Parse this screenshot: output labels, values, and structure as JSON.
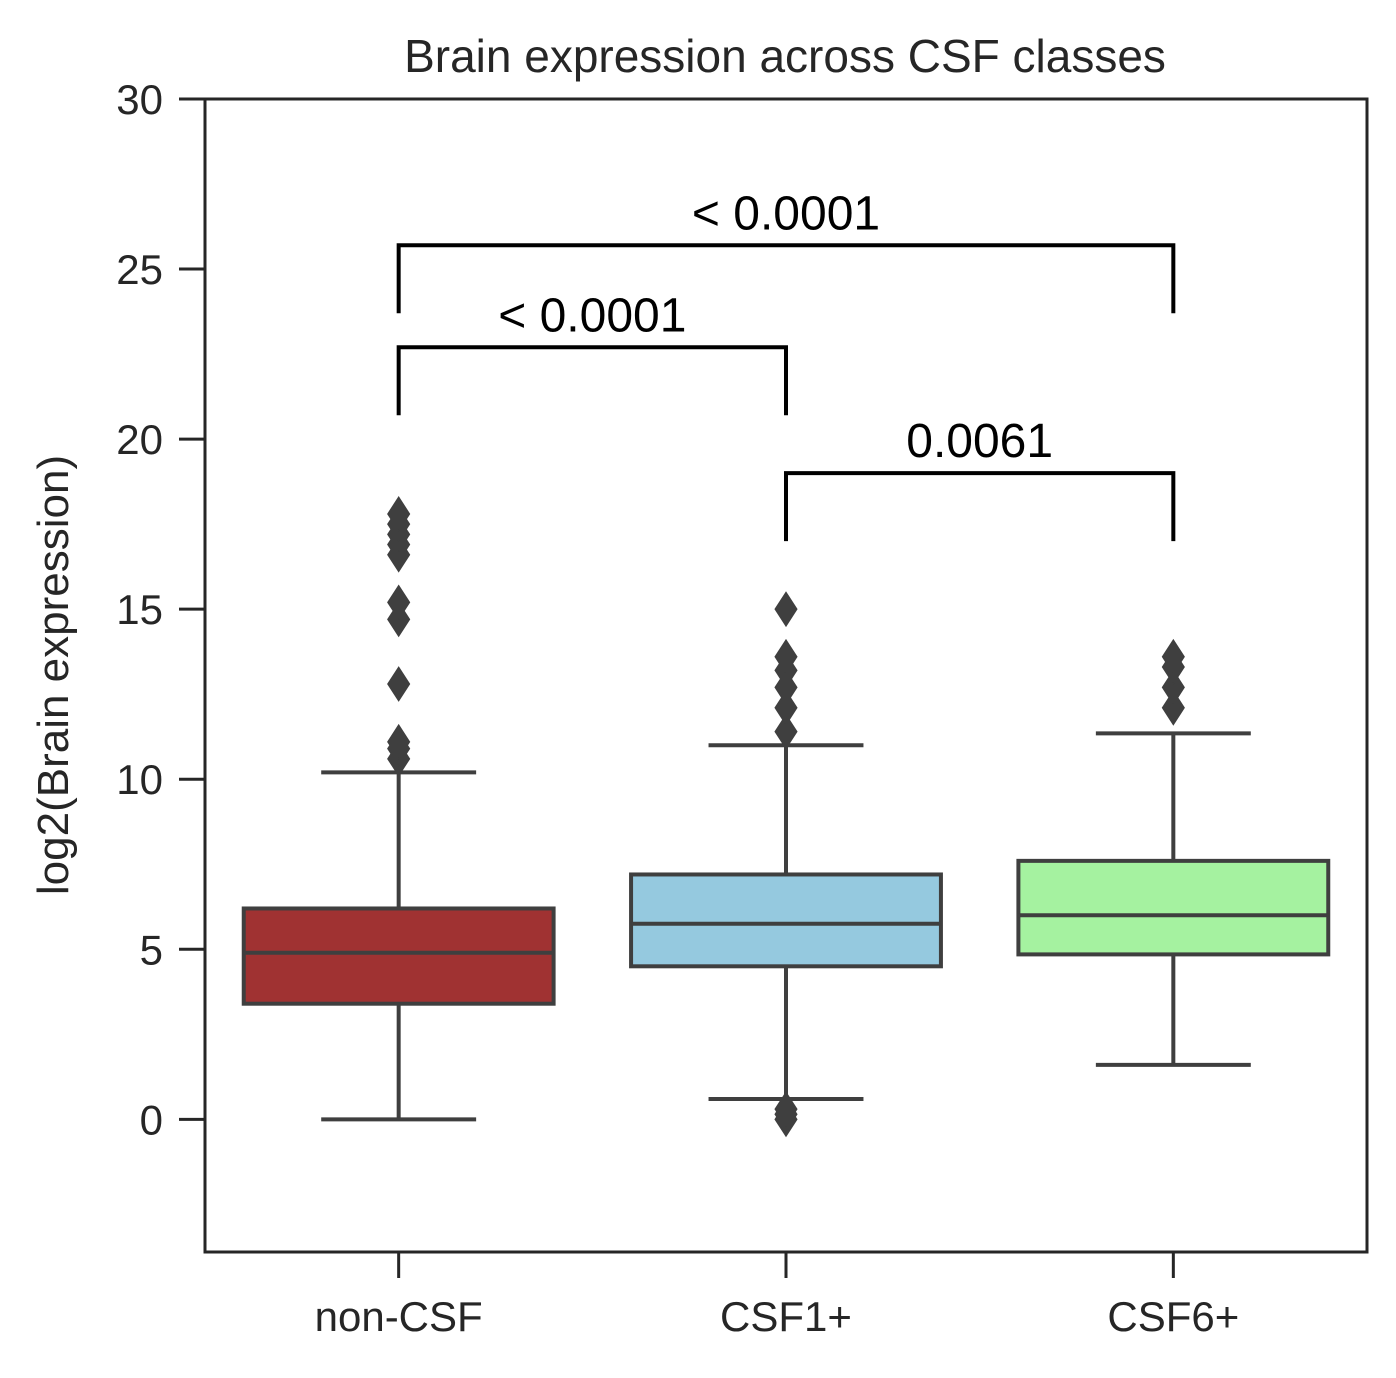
{
  "chart_data": {
    "type": "box",
    "title": "Brain expression across CSF classes",
    "xlabel": "",
    "ylabel": "log2(Brain expression)",
    "ylim": [
      -3.9,
      30
    ],
    "yticks": [
      0,
      5,
      10,
      15,
      20,
      25,
      30
    ],
    "categories": [
      "non-CSF",
      "CSF1+",
      "CSF6+"
    ],
    "colors": [
      "#a03232",
      "#95c9df",
      "#a5f2a0"
    ],
    "edge_color": "#3f3f3f",
    "boxes": [
      {
        "category": "non-CSF",
        "whisker_low": 0.0,
        "q1": 3.4,
        "median": 4.9,
        "q3": 6.2,
        "whisker_high": 10.2,
        "outliers": [
          10.6,
          10.9,
          11.1,
          12.8,
          14.7,
          15.2,
          16.6,
          16.9,
          17.2,
          17.5,
          17.8
        ]
      },
      {
        "category": "CSF1+",
        "whisker_low": 0.6,
        "q1": 4.5,
        "median": 5.75,
        "q3": 7.2,
        "whisker_high": 11.0,
        "outliers": [
          0.0,
          0.15,
          0.3,
          11.4,
          12.1,
          12.7,
          13.2,
          13.6,
          15.0
        ]
      },
      {
        "category": "CSF6+",
        "whisker_low": 1.6,
        "q1": 4.85,
        "median": 6.0,
        "q3": 7.6,
        "whisker_high": 11.35,
        "outliers": [
          12.1,
          12.7,
          13.3,
          13.6
        ]
      }
    ],
    "annotations": [
      {
        "from": "non-CSF",
        "to": "CSF6+",
        "y": 25.7,
        "drop_to": 23.7,
        "text": "< 0.0001"
      },
      {
        "from": "non-CSF",
        "to": "CSF1+",
        "y": 22.7,
        "drop_to": 20.7,
        "text": "< 0.0001"
      },
      {
        "from": "CSF1+",
        "to": "CSF6+",
        "y": 19.0,
        "drop_to": 17.0,
        "text": "0.0061"
      }
    ],
    "grid": false,
    "legend": "none"
  }
}
